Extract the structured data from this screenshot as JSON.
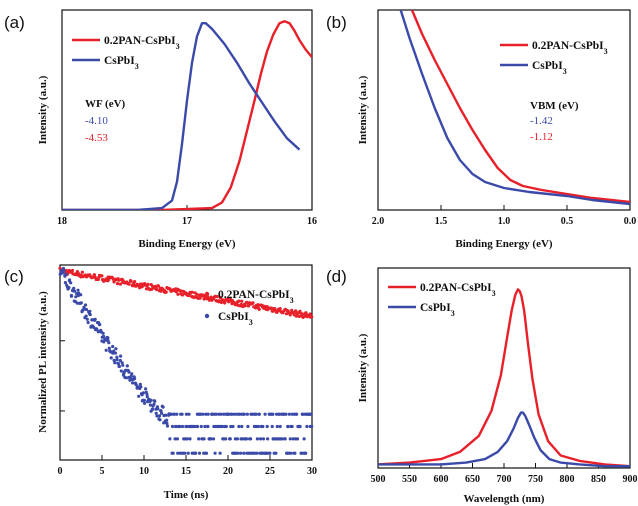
{
  "colors": {
    "red": "#e8202a",
    "blue": "#3b4aa8",
    "axis": "#111111"
  },
  "chart_data": [
    {
      "panel": "(a)",
      "type": "line",
      "xlabel": "Binding Energy (eV)",
      "ylabel": "Intensity (a.u.)",
      "xlim": [
        18,
        16
      ],
      "x_reversed": true,
      "xticks": [
        "18",
        "17",
        "16"
      ],
      "legend_position": "top-left",
      "series": [
        {
          "name": "0.2PAN-CsPbI3",
          "color": "red",
          "x": [
            18.0,
            17.2,
            16.8,
            16.72,
            16.65,
            16.58,
            16.52,
            16.46,
            16.41,
            16.36,
            16.31,
            16.26,
            16.22,
            16.18,
            16.14,
            16.1,
            16.05,
            16.0
          ],
          "y": [
            0.0,
            0.0,
            0.01,
            0.04,
            0.12,
            0.26,
            0.42,
            0.58,
            0.72,
            0.84,
            0.93,
            0.99,
            1.0,
            0.99,
            0.95,
            0.9,
            0.85,
            0.81
          ]
        },
        {
          "name": "CsPbI3",
          "color": "blue",
          "x": [
            18.0,
            17.4,
            17.2,
            17.12,
            17.08,
            17.04,
            17.0,
            16.96,
            16.92,
            16.88,
            16.85,
            16.8,
            16.7,
            16.6,
            16.5,
            16.4,
            16.3,
            16.2,
            16.1
          ],
          "y": [
            0.0,
            0.0,
            0.01,
            0.05,
            0.15,
            0.35,
            0.58,
            0.78,
            0.92,
            0.99,
            0.99,
            0.96,
            0.88,
            0.78,
            0.67,
            0.57,
            0.47,
            0.38,
            0.32
          ]
        }
      ],
      "annotation": {
        "title": "WF (eV)",
        "values": [
          {
            "text": "-4.10",
            "color": "blue"
          },
          {
            "text": "-4.53",
            "color": "red"
          }
        ]
      }
    },
    {
      "panel": "(b)",
      "type": "line",
      "xlabel": "Binding Energy (eV)",
      "ylabel": "Intensity (a.u.)",
      "xlim": [
        2.0,
        0.0
      ],
      "x_reversed": true,
      "xticks": [
        "2.0",
        "1.5",
        "1.0",
        "0.5",
        "0.0"
      ],
      "legend_position": "top-right",
      "series": [
        {
          "name": "0.2PAN-CsPbI3",
          "color": "red",
          "x": [
            1.73,
            1.65,
            1.55,
            1.45,
            1.35,
            1.25,
            1.15,
            1.05,
            0.95,
            0.85,
            0.7,
            0.5,
            0.3,
            0.0
          ],
          "y": [
            1.0,
            0.88,
            0.75,
            0.63,
            0.51,
            0.4,
            0.3,
            0.21,
            0.15,
            0.12,
            0.1,
            0.08,
            0.06,
            0.04
          ]
        },
        {
          "name": "CsPbI3",
          "color": "blue",
          "x": [
            1.82,
            1.75,
            1.65,
            1.55,
            1.45,
            1.35,
            1.25,
            1.15,
            1.0,
            0.8,
            0.5,
            0.3,
            0.0
          ],
          "y": [
            1.0,
            0.86,
            0.68,
            0.51,
            0.36,
            0.25,
            0.18,
            0.14,
            0.11,
            0.09,
            0.07,
            0.05,
            0.03
          ]
        }
      ],
      "annotation": {
        "title": "VBM (eV)",
        "values": [
          {
            "text": "-1.42",
            "color": "blue"
          },
          {
            "text": "-1.12",
            "color": "red"
          }
        ]
      }
    },
    {
      "panel": "(c)",
      "type": "scatter",
      "xlabel": "Time (ns)",
      "ylabel": "Normalized PL intensity (a.u.)",
      "xlim": [
        0,
        30
      ],
      "ylim_log": [
        0.002,
        1.2
      ],
      "ylog": true,
      "xticks": [
        "0",
        "5",
        "10",
        "15",
        "20",
        "25",
        "30"
      ],
      "legend_position": "top-right",
      "series": [
        {
          "name": "0.2PAN-CsPbI3",
          "color": "red",
          "model": "exp",
          "amplitude": 1.0,
          "tau_ns": 20.0,
          "floor": 0.0,
          "noise_decades": 0.04,
          "points": 300
        },
        {
          "name": "CsPbI3",
          "color": "blue",
          "model": "exp",
          "amplitude": 1.0,
          "tau_ns": 2.3,
          "floor": 0.004,
          "noise_decades": 0.12,
          "points": 420
        }
      ]
    },
    {
      "panel": "(d)",
      "type": "line",
      "xlabel": "Wavelength (nm)",
      "ylabel": "Intensity (a.u.)",
      "xlim": [
        500,
        900
      ],
      "xticks": [
        "500",
        "550",
        "600",
        "650",
        "700",
        "750",
        "800",
        "850",
        "900"
      ],
      "legend_position": "top-left",
      "series": [
        {
          "name": "0.2PAN-CsPbI3",
          "color": "red",
          "x": [
            500,
            550,
            600,
            630,
            660,
            680,
            695,
            705,
            712,
            718,
            722,
            725,
            728,
            732,
            738,
            745,
            755,
            770,
            790,
            820,
            860,
            900
          ],
          "y": [
            0.02,
            0.03,
            0.05,
            0.09,
            0.18,
            0.32,
            0.52,
            0.73,
            0.88,
            0.97,
            1.0,
            0.99,
            0.96,
            0.88,
            0.7,
            0.5,
            0.3,
            0.15,
            0.07,
            0.04,
            0.02,
            0.01
          ]
        },
        {
          "name": "CsPbI3",
          "color": "blue",
          "x": [
            500,
            550,
            600,
            640,
            670,
            690,
            705,
            715,
            722,
            727,
            730,
            734,
            740,
            748,
            758,
            772,
            790,
            820,
            860,
            900
          ],
          "y": [
            0.02,
            0.02,
            0.02,
            0.03,
            0.05,
            0.09,
            0.15,
            0.22,
            0.28,
            0.31,
            0.31,
            0.29,
            0.24,
            0.17,
            0.1,
            0.05,
            0.03,
            0.02,
            0.01,
            0.01
          ]
        }
      ]
    }
  ]
}
